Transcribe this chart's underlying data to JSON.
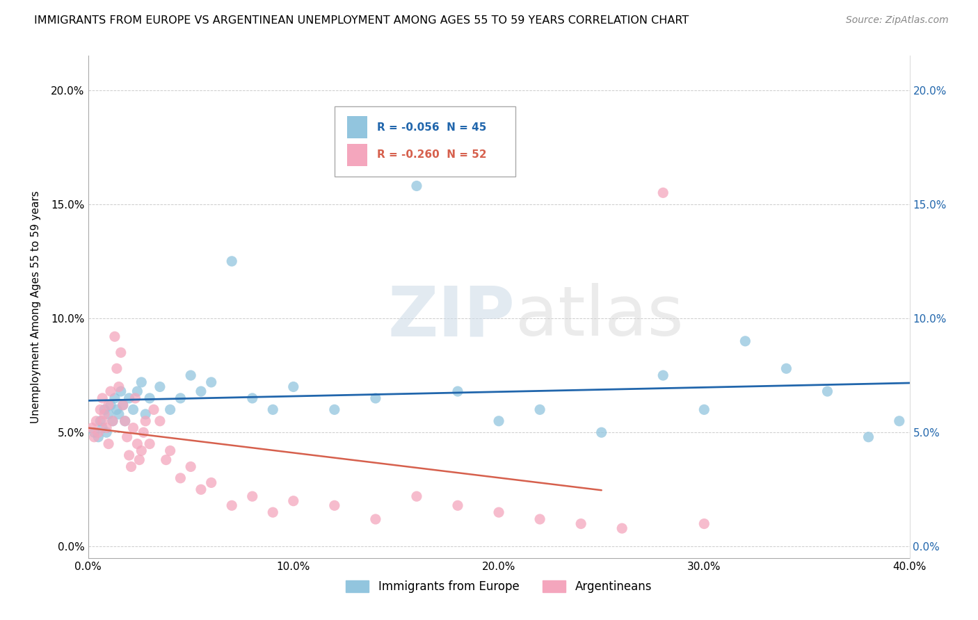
{
  "title": "IMMIGRANTS FROM EUROPE VS ARGENTINEAN UNEMPLOYMENT AMONG AGES 55 TO 59 YEARS CORRELATION CHART",
  "source": "Source: ZipAtlas.com",
  "ylabel": "Unemployment Among Ages 55 to 59 years",
  "xlim": [
    0.0,
    0.4
  ],
  "ylim": [
    -0.005,
    0.215
  ],
  "yticks": [
    0.0,
    0.05,
    0.1,
    0.15,
    0.2
  ],
  "ytick_labels": [
    "0.0%",
    "5.0%",
    "10.0%",
    "15.0%",
    "20.0%"
  ],
  "xticks": [
    0.0,
    0.1,
    0.2,
    0.3,
    0.4
  ],
  "xtick_labels": [
    "0.0%",
    "10.0%",
    "20.0%",
    "30.0%",
    "40.0%"
  ],
  "legend_blue_label": "Immigrants from Europe",
  "legend_pink_label": "Argentineans",
  "legend_blue_R": "-0.056",
  "legend_blue_N": "45",
  "legend_pink_R": "-0.260",
  "legend_pink_N": "52",
  "blue_color": "#92c5de",
  "pink_color": "#f4a6bd",
  "blue_line_color": "#2166ac",
  "pink_line_color": "#d6604d",
  "watermark_zip": "ZIP",
  "watermark_atlas": "atlas",
  "blue_scatter_x": [
    0.003,
    0.005,
    0.006,
    0.007,
    0.008,
    0.009,
    0.01,
    0.011,
    0.012,
    0.013,
    0.014,
    0.015,
    0.016,
    0.017,
    0.018,
    0.02,
    0.022,
    0.024,
    0.026,
    0.028,
    0.03,
    0.035,
    0.04,
    0.045,
    0.05,
    0.055,
    0.06,
    0.07,
    0.08,
    0.09,
    0.1,
    0.12,
    0.14,
    0.16,
    0.18,
    0.2,
    0.22,
    0.25,
    0.28,
    0.3,
    0.32,
    0.34,
    0.36,
    0.38,
    0.395
  ],
  "blue_scatter_y": [
    0.05,
    0.048,
    0.055,
    0.052,
    0.06,
    0.05,
    0.058,
    0.062,
    0.055,
    0.065,
    0.06,
    0.058,
    0.068,
    0.062,
    0.055,
    0.065,
    0.06,
    0.068,
    0.072,
    0.058,
    0.065,
    0.07,
    0.06,
    0.065,
    0.075,
    0.068,
    0.072,
    0.125,
    0.065,
    0.06,
    0.07,
    0.06,
    0.065,
    0.158,
    0.068,
    0.055,
    0.06,
    0.05,
    0.075,
    0.06,
    0.09,
    0.078,
    0.068,
    0.048,
    0.055
  ],
  "pink_scatter_x": [
    0.002,
    0.003,
    0.004,
    0.005,
    0.006,
    0.007,
    0.007,
    0.008,
    0.009,
    0.01,
    0.01,
    0.011,
    0.012,
    0.013,
    0.014,
    0.015,
    0.016,
    0.017,
    0.018,
    0.019,
    0.02,
    0.021,
    0.022,
    0.023,
    0.024,
    0.025,
    0.026,
    0.027,
    0.028,
    0.03,
    0.032,
    0.035,
    0.038,
    0.04,
    0.045,
    0.05,
    0.055,
    0.06,
    0.07,
    0.08,
    0.09,
    0.1,
    0.12,
    0.14,
    0.16,
    0.18,
    0.2,
    0.22,
    0.24,
    0.26,
    0.28,
    0.3
  ],
  "pink_scatter_y": [
    0.052,
    0.048,
    0.055,
    0.05,
    0.06,
    0.055,
    0.065,
    0.058,
    0.052,
    0.045,
    0.062,
    0.068,
    0.055,
    0.092,
    0.078,
    0.07,
    0.085,
    0.062,
    0.055,
    0.048,
    0.04,
    0.035,
    0.052,
    0.065,
    0.045,
    0.038,
    0.042,
    0.05,
    0.055,
    0.045,
    0.06,
    0.055,
    0.038,
    0.042,
    0.03,
    0.035,
    0.025,
    0.028,
    0.018,
    0.022,
    0.015,
    0.02,
    0.018,
    0.012,
    0.022,
    0.018,
    0.015,
    0.012,
    0.01,
    0.008,
    0.155,
    0.01
  ]
}
